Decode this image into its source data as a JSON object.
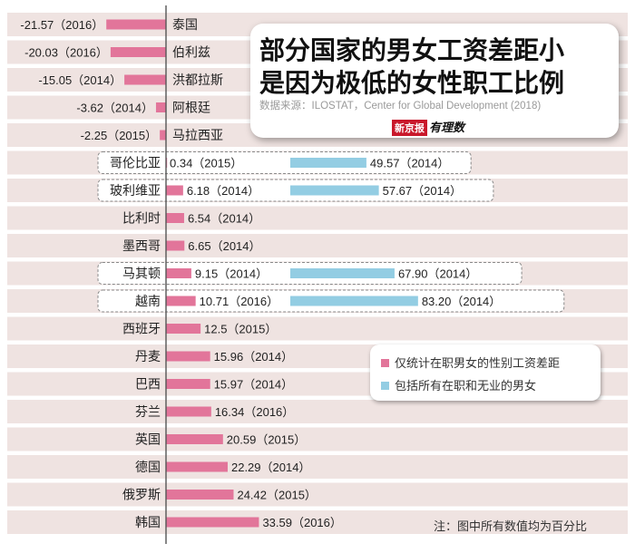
{
  "title": {
    "line1": "部分国家的男女工资差距小",
    "line2": "是因为极低的女性职工比例"
  },
  "source": "数据来源：ILOSTAT，Center for Global Development (2018)",
  "brand": {
    "name": "新京报",
    "sub": "有理数"
  },
  "legend": {
    "pink_label": "仅统计在职男女的性别工资差距",
    "blue_label": "包括所有在职和无业的男女"
  },
  "note": "注：图中所有数值均为百分比",
  "colors": {
    "pink": "#e2759a",
    "blue": "#93cde3",
    "band": "#efe3e1",
    "axis": "#555555"
  },
  "chart_data": {
    "type": "bar",
    "orientation": "horizontal",
    "unit": "%",
    "categories": [
      "泰国",
      "伯利兹",
      "洪都拉斯",
      "阿根廷",
      "马拉西亚",
      "哥伦比亚",
      "玻利维亚",
      "比利时",
      "墨西哥",
      "马其顿",
      "越南",
      "西班牙",
      "丹麦",
      "巴西",
      "芬兰",
      "英国",
      "德国",
      "俄罗斯",
      "韩国"
    ],
    "series": [
      {
        "name": "仅统计在职男女的性别工资差距",
        "values": [
          -21.57,
          -20.03,
          -15.05,
          -3.62,
          -2.25,
          0.34,
          6.18,
          6.54,
          6.65,
          9.15,
          10.71,
          12.5,
          15.96,
          15.97,
          16.34,
          20.59,
          22.29,
          24.42,
          33.59
        ],
        "years": [
          "2016",
          "2016",
          "2014",
          "2014",
          "2015",
          "2015",
          "2014",
          "2014",
          "2014",
          "2014",
          "2016",
          "2015",
          "2014",
          "2014",
          "2016",
          "2015",
          "2014",
          "2015",
          "2016"
        ],
        "labels": [
          "-21.57（2016）",
          "-20.03（2016）",
          "-15.05（2014）",
          "-3.62（2014）",
          "-2.25（2015）",
          "0.34（2015）",
          "6.18（2014）",
          "6.54（2014）",
          "6.65（2014）",
          "9.15（2014）",
          "10.71（2016）",
          "12.5（2015）",
          "15.96（2014）",
          "15.97（2014）",
          "16.34（2016）",
          "20.59（2015）",
          "22.29（2014）",
          "24.42（2015）",
          "33.59（2016）"
        ]
      },
      {
        "name": "包括所有在职和无业的男女",
        "values": [
          null,
          null,
          null,
          null,
          null,
          49.57,
          57.67,
          null,
          null,
          67.9,
          83.2,
          null,
          null,
          null,
          null,
          null,
          null,
          null,
          null
        ],
        "years": [
          null,
          null,
          null,
          null,
          null,
          "2014",
          "2014",
          null,
          null,
          "2014",
          "2014",
          null,
          null,
          null,
          null,
          null,
          null,
          null,
          null
        ],
        "labels": [
          null,
          null,
          null,
          null,
          null,
          "49.57（2014）",
          "57.67（2014）",
          null,
          null,
          "67.90（2014）",
          "83.20（2014）",
          null,
          null,
          null,
          null,
          null,
          null,
          null,
          null
        ]
      }
    ],
    "title": "部分国家的男女工资差距小是因为极低的女性职工比例",
    "xlabel": "",
    "ylabel": ""
  }
}
